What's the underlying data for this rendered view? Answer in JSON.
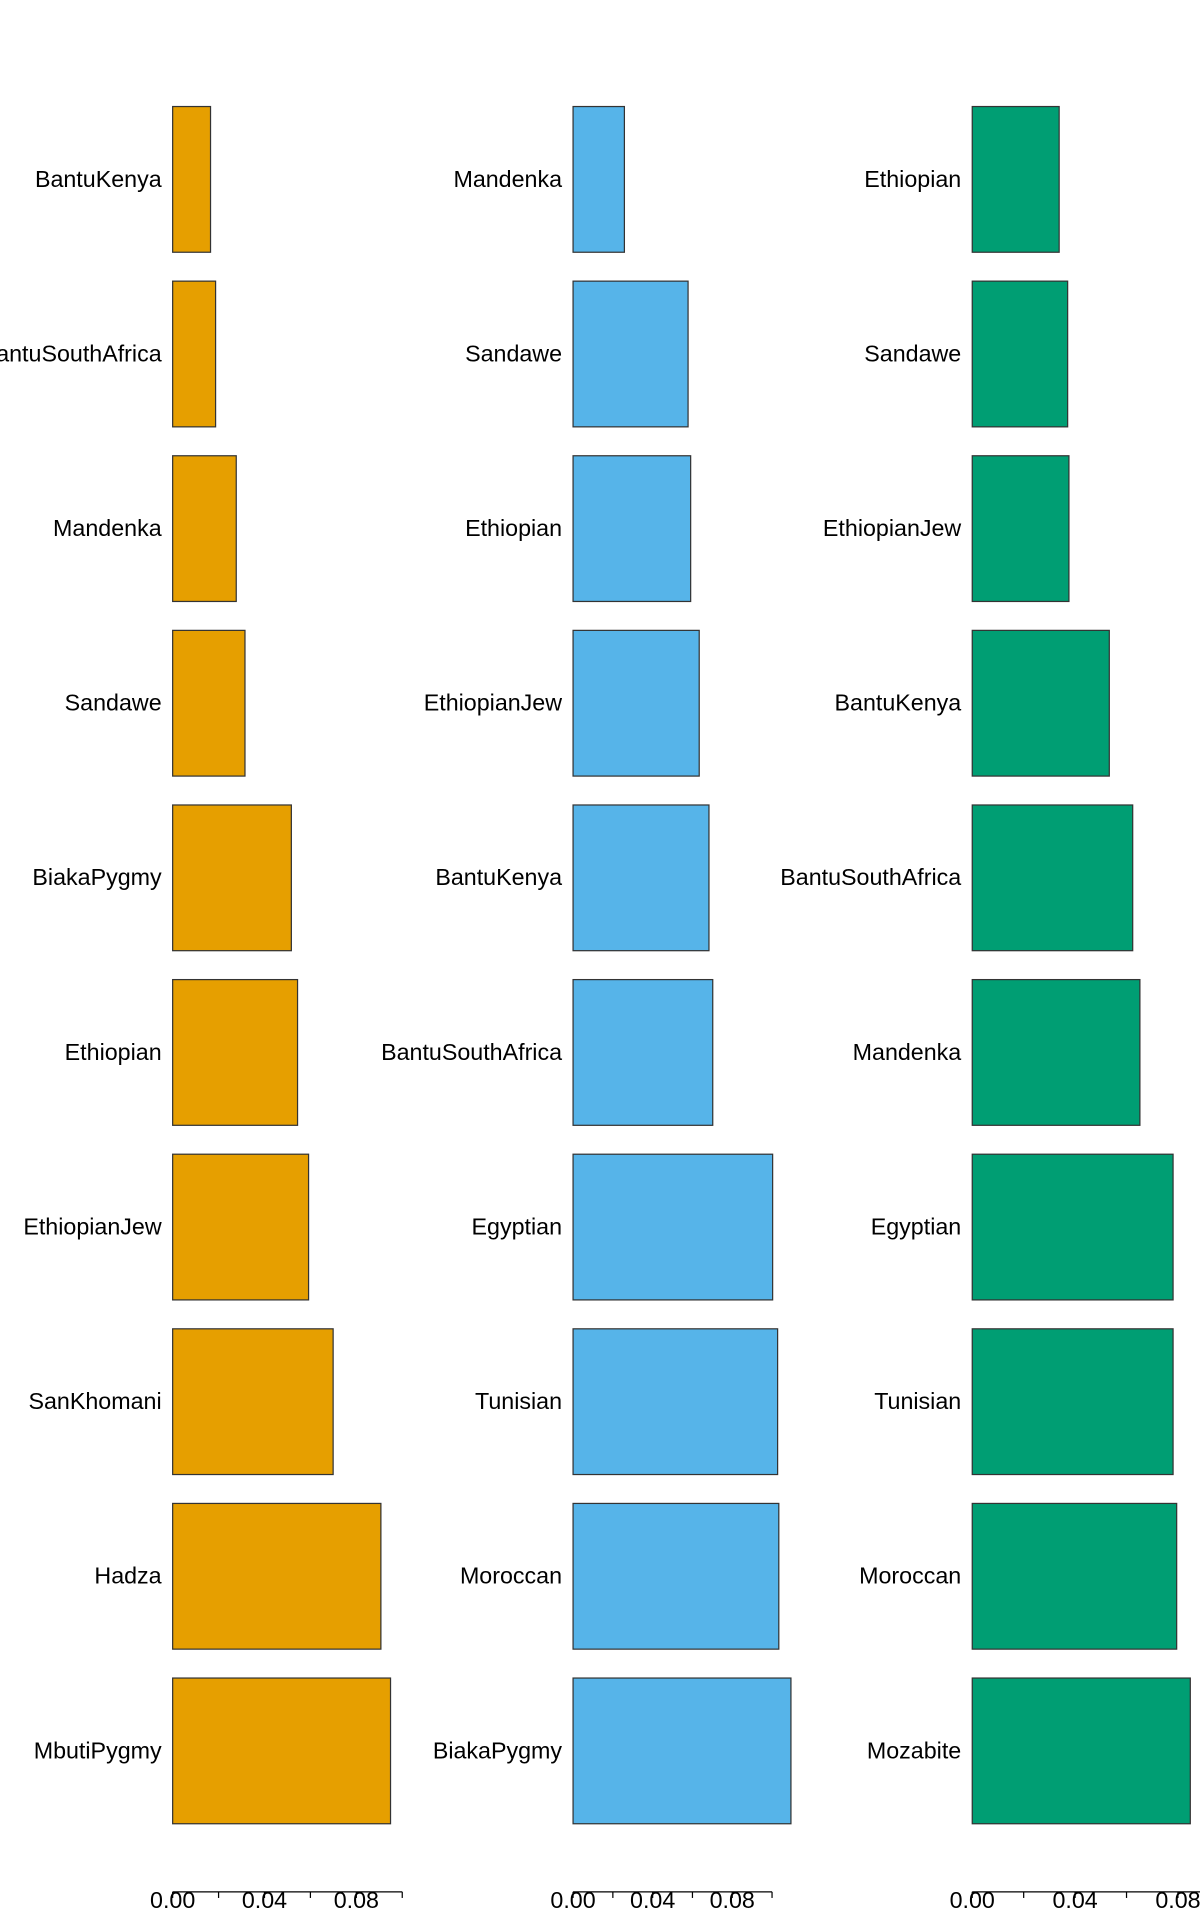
{
  "chart_data": [
    {
      "type": "bar",
      "orientation": "horizontal",
      "color": "#E69F00",
      "categories": [
        "BantuKenya",
        "BantuSouthAfrica",
        "Mandenka",
        "Sandawe",
        "BiakaPygmy",
        "Ethiopian",
        "EthiopianJew",
        "SanKhomani",
        "Hadza",
        "MbutiPygmy"
      ],
      "values": [
        0.0165,
        0.0187,
        0.0277,
        0.0315,
        0.0517,
        0.0544,
        0.0592,
        0.0699,
        0.0907,
        0.0949
      ],
      "xlim": [
        0,
        0.1
      ],
      "xticks": [
        {
          "value": 0,
          "label": "0.00"
        },
        {
          "value": 0.04,
          "label": "0.04"
        },
        {
          "value": 0.08,
          "label": "0.08"
        }
      ],
      "minor_xticks": [
        0.02,
        0.06,
        0.1
      ]
    },
    {
      "type": "bar",
      "orientation": "horizontal",
      "color": "#56B4E9",
      "categories": [
        "Mandenka",
        "Sandawe",
        "Ethiopian",
        "EthiopianJew",
        "BantuKenya",
        "BantuSouthAfrica",
        "Egyptian",
        "Tunisian",
        "Moroccan",
        "BiakaPygmy"
      ],
      "values": [
        0.0258,
        0.0578,
        0.0591,
        0.0634,
        0.0683,
        0.0702,
        0.1003,
        0.1028,
        0.1034,
        0.1095
      ],
      "xlim": [
        0,
        0.1
      ],
      "xticks": [
        {
          "value": 0,
          "label": "0.00"
        },
        {
          "value": 0.04,
          "label": "0.04"
        },
        {
          "value": 0.08,
          "label": "0.08"
        }
      ],
      "minor_xticks": [
        0.02,
        0.06,
        0.1
      ]
    },
    {
      "type": "bar",
      "orientation": "horizontal",
      "color": "#009E73",
      "categories": [
        "Ethiopian",
        "Sandawe",
        "EthiopianJew",
        "BantuKenya",
        "BantuSouthAfrica",
        "Mandenka",
        "Egyptian",
        "Tunisian",
        "Moroccan",
        "Mozabite"
      ],
      "values": [
        0.0338,
        0.0371,
        0.0376,
        0.0533,
        0.0624,
        0.0652,
        0.0781,
        0.0781,
        0.0795,
        0.0848
      ],
      "xlim": [
        0,
        0.1
      ],
      "xticks": [
        {
          "value": 0,
          "label": "0.00"
        },
        {
          "value": 0.04,
          "label": "0.04"
        },
        {
          "value": 0.08,
          "label": "0.08"
        }
      ],
      "minor_xticks": [
        0.02,
        0.06,
        0.1
      ]
    }
  ]
}
